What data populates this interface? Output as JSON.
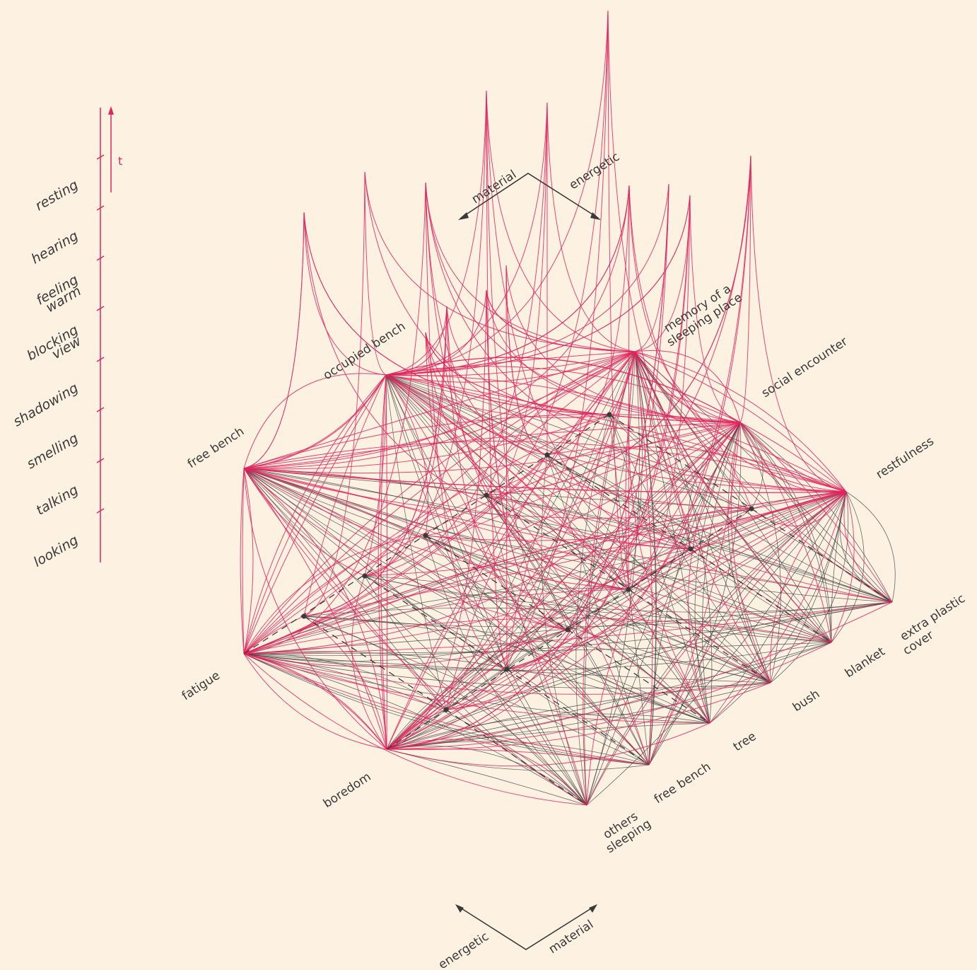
{
  "timeline": {
    "items": [
      "looking",
      "talking",
      "smelling",
      "shadowing",
      "blocking view",
      "feeling warm",
      "hearing",
      "resting"
    ],
    "time_label": "t"
  },
  "axes_top": {
    "left": "material",
    "right": "energetic"
  },
  "axes_bottom": {
    "left": "energetic",
    "right": "material"
  },
  "energetic_nodes": [
    "fatigue",
    "free bench",
    "occupied bench",
    "memory of a sleeping place",
    "social encounter",
    "restfulness",
    "boredom"
  ],
  "material_nodes": [
    "others sleeping",
    "free bench",
    "tree",
    "bush",
    "blanket",
    "extra plastic cover"
  ],
  "colors": {
    "background": "#fdf1e2",
    "accent": "#e0265e",
    "ink": "#3a3a3a"
  }
}
